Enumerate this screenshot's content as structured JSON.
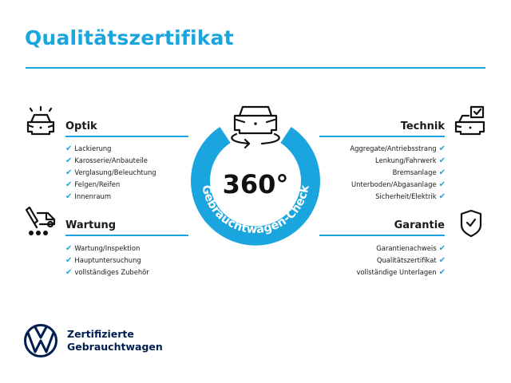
{
  "title": "Qualitätszertifikat",
  "badge": {
    "value": "360°",
    "ring_text": "Gebrauchtwagen-Check",
    "color": "#1ba5df"
  },
  "sections": {
    "optik": {
      "heading": "Optik",
      "icon": "car-lights-icon",
      "items": [
        "Lackierung",
        "Karosserie/Anbauteile",
        "Verglasung/Beleuchtung",
        "Felgen/Reifen",
        "Innenraum"
      ]
    },
    "wartung": {
      "heading": "Wartung",
      "icon": "service-tools-van-icon",
      "items": [
        "Wartung/Inspektion",
        "Hauptuntersuchung",
        "vollständiges Zubehör"
      ]
    },
    "technik": {
      "heading": "Technik",
      "icon": "car-checkbox-icon",
      "items": [
        "Aggregate/Antriebsstrang",
        "Lenkung/Fahrwerk",
        "Bremsanlage",
        "Unterboden/Abgasanlage",
        "Sicherheit/Elektrik"
      ]
    },
    "garantie": {
      "heading": "Garantie",
      "icon": "shield-check-icon",
      "items": [
        "Garantienachweis",
        "Qualitätszertifikat",
        "vollständige Unterlagen"
      ]
    }
  },
  "check_mark": "✔",
  "brand": {
    "line1": "Zertifizierte",
    "line2": "Gebrauchtwagen",
    "logo": "vw-logo",
    "color": "#001e50"
  }
}
